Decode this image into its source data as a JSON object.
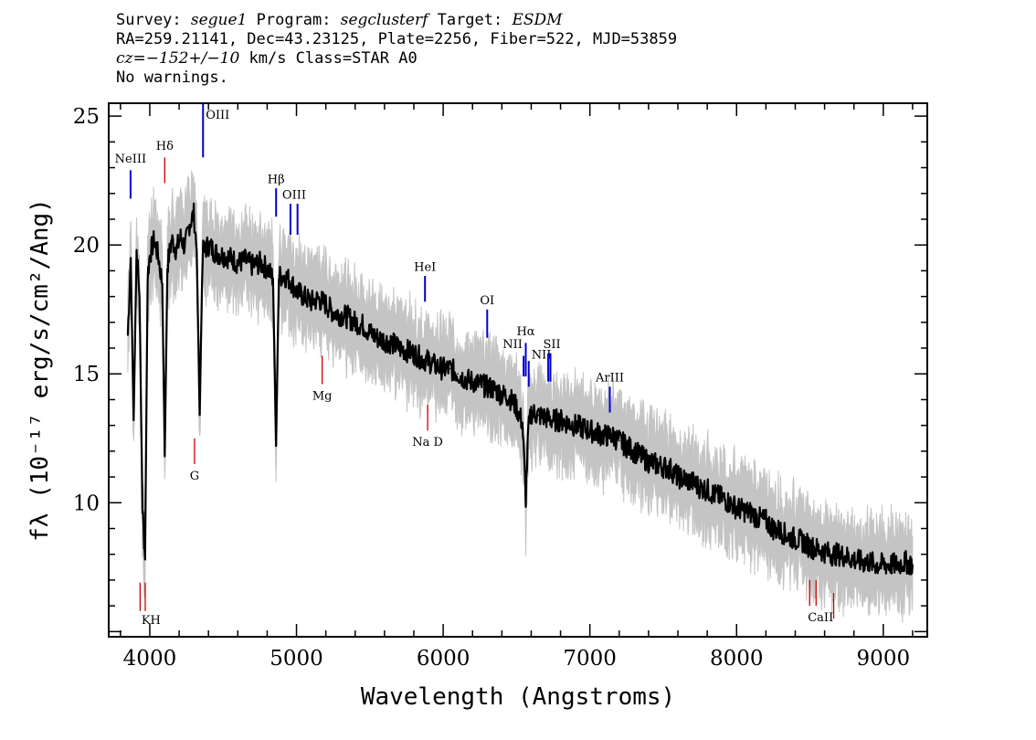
{
  "header": {
    "line1": {
      "survey_label": "Survey: ",
      "survey": "segue1",
      "program_label": " Program: ",
      "program": "segclusterf",
      "target_label": " Target: ",
      "target": "ESDM"
    },
    "line2": "RA=259.21141, Dec=43.23125, Plate=2256, Fiber=522, MJD=53859",
    "line3": {
      "cz": "cz=−152+/−10",
      "rest": " km/s Class=STAR A0"
    },
    "line4": "No warnings."
  },
  "colors": {
    "spectrum": "#000000",
    "error_band": "#c4c4c4",
    "emission_marker": "#0000cc",
    "absorption_marker": "#cc0000"
  },
  "chart_data": {
    "type": "line",
    "xlabel": "Wavelength (Angstroms)",
    "ylabel": "fλ (10⁻¹⁷ erg/s/cm²/Ang)",
    "xlim": [
      3720,
      9300
    ],
    "ylim": [
      4.8,
      25.5
    ],
    "xticks": [
      4000,
      5000,
      6000,
      7000,
      8000,
      9000
    ],
    "yticks": [
      10,
      15,
      20,
      25
    ],
    "grid": false,
    "legend": "none",
    "series": [
      {
        "x": [
          3850,
          3870,
          3890,
          3910,
          3930,
          3950,
          3968,
          3985,
          4000,
          4030,
          4060,
          4085,
          4102,
          4120,
          4150,
          4180,
          4210,
          4240,
          4270,
          4300,
          4320,
          4340,
          4360,
          4400,
          4450,
          4500,
          4550,
          4600,
          4650,
          4700,
          4750,
          4800,
          4840,
          4861,
          4880,
          4920,
          4960,
          5000,
          5050,
          5100,
          5150,
          5200,
          5250,
          5300,
          5350,
          5400,
          5450,
          5500,
          5550,
          5600,
          5650,
          5700,
          5750,
          5800,
          5850,
          5900,
          5950,
          6000,
          6050,
          6100,
          6150,
          6200,
          6250,
          6300,
          6350,
          6400,
          6450,
          6500,
          6540,
          6563,
          6580,
          6600,
          6650,
          6700,
          6750,
          6800,
          6850,
          6900,
          6950,
          7000,
          7050,
          7100,
          7150,
          7200,
          7250,
          7300,
          7350,
          7400,
          7450,
          7500,
          7550,
          7600,
          7650,
          7700,
          7750,
          7800,
          7850,
          7900,
          7950,
          8000,
          8050,
          8100,
          8150,
          8200,
          8250,
          8300,
          8350,
          8400,
          8450,
          8500,
          8550,
          8600,
          8650,
          8700,
          8750,
          8800,
          8850,
          8900,
          8950,
          9000,
          9050,
          9100,
          9150,
          9200
        ],
        "y": [
          16.5,
          19.5,
          13.2,
          19.8,
          18.0,
          9.8,
          7.8,
          18.8,
          19.6,
          20.2,
          19.5,
          18.5,
          11.8,
          19.2,
          20.2,
          19.8,
          20.3,
          19.9,
          20.8,
          21.2,
          19.8,
          13.4,
          19.7,
          20.0,
          19.7,
          19.6,
          19.5,
          19.3,
          19.4,
          19.2,
          19.3,
          19.1,
          18.7,
          12.2,
          18.8,
          18.8,
          18.6,
          18.2,
          18.0,
          17.8,
          17.9,
          17.7,
          17.4,
          17.3,
          17.2,
          17.0,
          16.9,
          16.6,
          16.4,
          16.3,
          16.2,
          16.0,
          15.9,
          15.8,
          15.6,
          15.5,
          15.3,
          15.2,
          15.2,
          15.0,
          14.8,
          14.7,
          14.6,
          14.5,
          14.4,
          14.2,
          14.1,
          13.7,
          13.1,
          10.2,
          12.8,
          13.5,
          13.4,
          13.3,
          13.2,
          13.2,
          13.1,
          13.0,
          12.9,
          12.8,
          12.7,
          12.6,
          12.6,
          12.4,
          12.2,
          12.0,
          11.8,
          11.6,
          11.5,
          11.4,
          11.3,
          11.0,
          10.9,
          10.8,
          10.6,
          10.5,
          10.3,
          10.2,
          10.0,
          9.8,
          9.7,
          9.6,
          9.4,
          9.3,
          9.0,
          8.9,
          8.7,
          8.6,
          8.5,
          8.3,
          8.2,
          8.1,
          8.0,
          8.0,
          7.9,
          7.8,
          7.7,
          7.7,
          7.6,
          7.6,
          7.6,
          7.6,
          7.7,
          7.6
        ]
      }
    ],
    "line_markers": [
      {
        "label": "NeIII",
        "wavelength": 3869,
        "y_top": 22.9,
        "y_bottom": 21.8,
        "kind": "emission",
        "label_y": 23.2,
        "label_pos": "above"
      },
      {
        "label": "Hδ",
        "wavelength": 4102,
        "y_top": 23.4,
        "y_bottom": 22.4,
        "kind": "absorption",
        "label_y": 23.7,
        "label_pos": "above"
      },
      {
        "label": "OIII",
        "wavelength": 4363,
        "y_top": 25.5,
        "y_bottom": 23.4,
        "kind": "emission",
        "label_y": 24.9,
        "label_pos": "right"
      },
      {
        "label": "Hβ",
        "wavelength": 4861,
        "y_top": 22.2,
        "y_bottom": 21.1,
        "kind": "emission",
        "label_y": 22.4,
        "label_pos": "above"
      },
      {
        "label": "OIII",
        "wavelength": 4959,
        "y_top": 21.6,
        "y_bottom": 20.4,
        "kind": "emission",
        "label_y": 21.8,
        "label_pos": "above-right"
      },
      {
        "label": "",
        "wavelength": 5007,
        "y_top": 21.6,
        "y_bottom": 20.4,
        "kind": "emission"
      },
      {
        "label": "HeI",
        "wavelength": 5876,
        "y_top": 18.8,
        "y_bottom": 17.8,
        "kind": "emission",
        "label_y": 19.0,
        "label_pos": "above"
      },
      {
        "label": "OI",
        "wavelength": 6300,
        "y_top": 17.5,
        "y_bottom": 16.4,
        "kind": "emission",
        "label_y": 17.7,
        "label_pos": "above"
      },
      {
        "label": "NII",
        "wavelength": 6548,
        "y_top": 15.7,
        "y_bottom": 14.9,
        "kind": "emission",
        "label_y": 16.0,
        "label_pos": "above-left"
      },
      {
        "label": "Hα",
        "wavelength": 6563,
        "y_top": 16.2,
        "y_bottom": 14.9,
        "kind": "emission",
        "label_y": 16.5,
        "label_pos": "above"
      },
      {
        "label": "NII",
        "wavelength": 6583,
        "y_top": 15.5,
        "y_bottom": 14.5,
        "kind": "emission",
        "label_y": 15.6,
        "label_pos": "right"
      },
      {
        "label": "SII",
        "wavelength": 6716,
        "y_top": 15.8,
        "y_bottom": 14.7,
        "kind": "emission",
        "label_y": 16.0,
        "label_pos": "above-right"
      },
      {
        "label": "",
        "wavelength": 6731,
        "y_top": 15.8,
        "y_bottom": 14.7,
        "kind": "emission"
      },
      {
        "label": "ArIII",
        "wavelength": 7136,
        "y_top": 14.5,
        "y_bottom": 13.5,
        "kind": "emission",
        "label_y": 14.7,
        "label_pos": "above"
      },
      {
        "label": "G",
        "wavelength": 4305,
        "y_top": 12.5,
        "y_bottom": 11.5,
        "kind": "absorption",
        "label_y": 10.9,
        "label_pos": "below"
      },
      {
        "label": "Mg",
        "wavelength": 5175,
        "y_top": 15.7,
        "y_bottom": 14.6,
        "kind": "absorption",
        "label_y": 14.0,
        "label_pos": "below"
      },
      {
        "label": "Na D",
        "wavelength": 5894,
        "y_top": 13.8,
        "y_bottom": 12.8,
        "kind": "absorption",
        "label_y": 12.2,
        "label_pos": "below"
      },
      {
        "label": "KH",
        "wavelength": 3934,
        "y_top": 6.9,
        "y_bottom": 5.8,
        "kind": "absorption",
        "label_y": 5.3,
        "label_pos": "below-right"
      },
      {
        "label": "",
        "wavelength": 3969,
        "y_top": 6.9,
        "y_bottom": 5.8,
        "kind": "absorption"
      },
      {
        "label": "CaII",
        "wavelength": 8498,
        "y_top": 7.0,
        "y_bottom": 6.0,
        "kind": "absorption",
        "label_y": 5.4,
        "label_pos": "below-right"
      },
      {
        "label": "",
        "wavelength": 8542,
        "y_top": 7.0,
        "y_bottom": 6.0,
        "kind": "absorption"
      },
      {
        "label": "",
        "wavelength": 8662,
        "y_top": 6.5,
        "y_bottom": 5.5,
        "kind": "absorption"
      }
    ]
  }
}
